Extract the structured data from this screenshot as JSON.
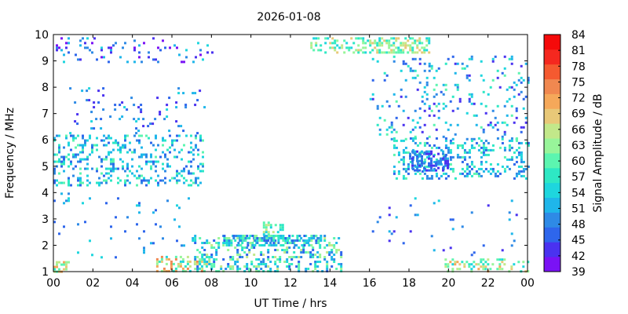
{
  "chart_data": {
    "type": "heatmap",
    "title": "2026-01-08",
    "xlabel": "UT Time / hrs",
    "ylabel": "Frequency / MHz",
    "xlim": [
      0,
      24
    ],
    "ylim": [
      1,
      10
    ],
    "x_ticks": [
      "00",
      "02",
      "04",
      "06",
      "08",
      "10",
      "12",
      "14",
      "16",
      "18",
      "20",
      "22",
      "00"
    ],
    "y_ticks": [
      "1",
      "2",
      "3",
      "4",
      "5",
      "6",
      "7",
      "8",
      "9",
      "10"
    ],
    "colorbar": {
      "label": "Signal Amplitude / dB",
      "range": [
        39,
        84
      ],
      "ticks": [
        "84",
        "81",
        "78",
        "75",
        "72",
        "69",
        "66",
        "63",
        "60",
        "57",
        "54",
        "51",
        "48",
        "45",
        "42",
        "39"
      ],
      "colors": [
        "#7a12f5",
        "#4a32f0",
        "#2e66ec",
        "#2e8ae6",
        "#1fb6ea",
        "#1ed6de",
        "#2ee8c4",
        "#5cf5b0",
        "#98f59a",
        "#c2e88a",
        "#e8c878",
        "#f5a85a",
        "#f08850",
        "#f55a30",
        "#f5281f",
        "#f50a0a"
      ]
    },
    "regions": [
      {
        "x": [
          0.0,
          0.8
        ],
        "y": [
          1.0,
          1.4
        ],
        "amp": [
          57,
          72
        ],
        "density": 0.55
      },
      {
        "x": [
          0.0,
          8.0
        ],
        "y": [
          9.0,
          9.9
        ],
        "amp": [
          39,
          54
        ],
        "density": 0.12
      },
      {
        "x": [
          0.0,
          7.6
        ],
        "y": [
          4.3,
          6.2
        ],
        "amp": [
          45,
          60
        ],
        "density": 0.25
      },
      {
        "x": [
          0.8,
          7.6
        ],
        "y": [
          6.3,
          8.0
        ],
        "amp": [
          42,
          54
        ],
        "density": 0.07
      },
      {
        "x": [
          5.2,
          8.0
        ],
        "y": [
          1.0,
          1.6
        ],
        "amp": [
          54,
          75
        ],
        "density": 0.45
      },
      {
        "x": [
          7.0,
          14.6
        ],
        "y": [
          1.0,
          2.4
        ],
        "amp": [
          45,
          66
        ],
        "density": 0.32
      },
      {
        "x": [
          8.6,
          13.6
        ],
        "y": [
          2.0,
          2.4
        ],
        "amp": [
          45,
          63
        ],
        "density": 0.6
      },
      {
        "x": [
          10.6,
          11.6
        ],
        "y": [
          2.4,
          2.9
        ],
        "amp": [
          54,
          66
        ],
        "density": 0.5
      },
      {
        "x": [
          13.0,
          19.0
        ],
        "y": [
          9.3,
          9.9
        ],
        "amp": [
          54,
          69
        ],
        "density": 0.45
      },
      {
        "x": [
          16.0,
          24.0
        ],
        "y": [
          6.0,
          9.2
        ],
        "amp": [
          42,
          60
        ],
        "density": 0.1
      },
      {
        "x": [
          17.2,
          24.0
        ],
        "y": [
          4.5,
          6.1
        ],
        "amp": [
          45,
          60
        ],
        "density": 0.28
      },
      {
        "x": [
          18.0,
          20.0
        ],
        "y": [
          4.8,
          5.6
        ],
        "amp": [
          42,
          51
        ],
        "density": 0.5
      },
      {
        "x": [
          19.8,
          24.0
        ],
        "y": [
          1.0,
          1.5
        ],
        "amp": [
          54,
          72
        ],
        "density": 0.28
      },
      {
        "x": [
          16.0,
          23.5
        ],
        "y": [
          1.5,
          4.0
        ],
        "amp": [
          42,
          54
        ],
        "density": 0.03
      },
      {
        "x": [
          0.0,
          7.0
        ],
        "y": [
          1.5,
          4.0
        ],
        "amp": [
          45,
          54
        ],
        "density": 0.03
      }
    ]
  }
}
